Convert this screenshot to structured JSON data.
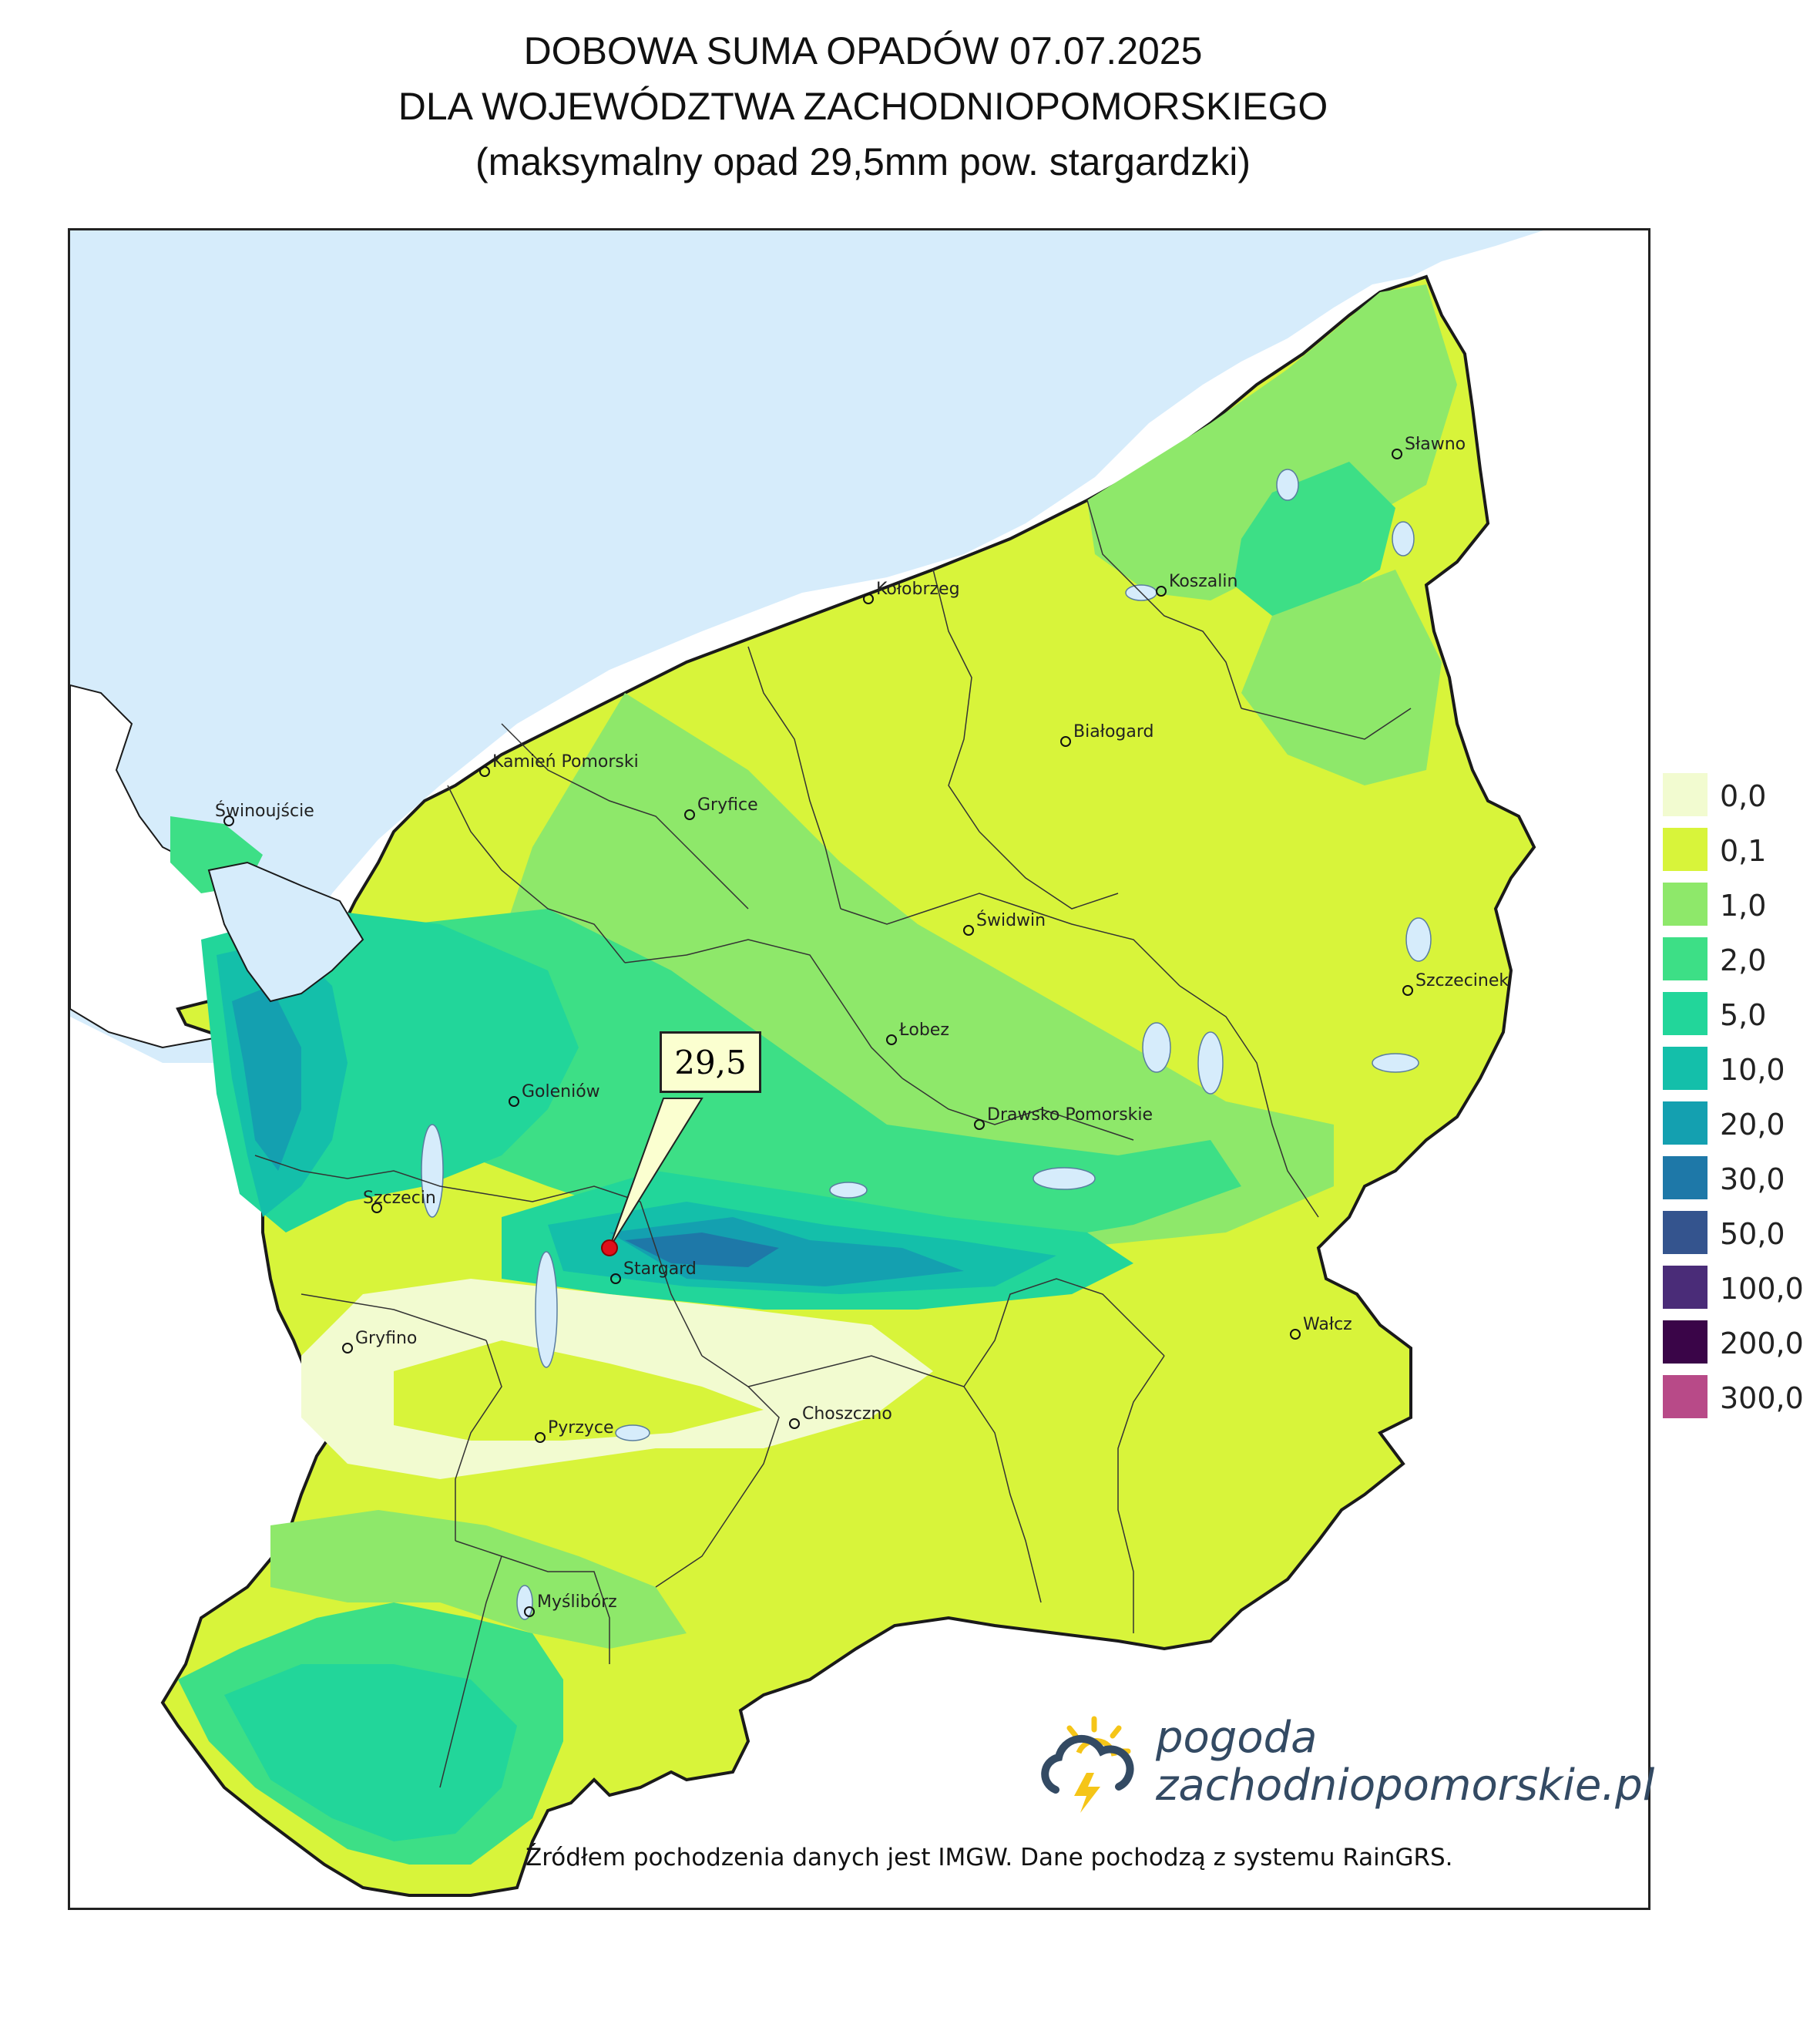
{
  "title": {
    "line1": "DOBOWA SUMA OPADÓW 07.07.2025",
    "line2": "DLA WOJEWÓDZTWA ZACHODNIOPOMORSKIEGO",
    "line3": "(maksymalny opad 29,5mm pow. stargardzki)"
  },
  "map": {
    "max_value_label": "29,5",
    "colors": {
      "sea": "#d6ecfb",
      "outside_land": "#ffffff",
      "border": "#1a1a1a",
      "max_marker": "#e0101a"
    },
    "cities": [
      {
        "name": "Sławno"
      },
      {
        "name": "Koszalin"
      },
      {
        "name": "Kołobrzeg"
      },
      {
        "name": "Białogard"
      },
      {
        "name": "Kamień Pomorski"
      },
      {
        "name": "Gryfice"
      },
      {
        "name": "Świnoujście"
      },
      {
        "name": "Świdwin"
      },
      {
        "name": "Szczecinek"
      },
      {
        "name": "Łobez"
      },
      {
        "name": "Goleniów"
      },
      {
        "name": "Drawsko Pomorskie"
      },
      {
        "name": "Szczecin"
      },
      {
        "name": "Stargard"
      },
      {
        "name": "Wałcz"
      },
      {
        "name": "Gryfino"
      },
      {
        "name": "Choszczno"
      },
      {
        "name": "Pyrzyce"
      },
      {
        "name": "Myślibórz"
      }
    ]
  },
  "legend": [
    {
      "label": "0,0",
      "color": "#f2fbd0"
    },
    {
      "label": "0,1",
      "color": "#d8f43a"
    },
    {
      "label": "1,0",
      "color": "#8ee86a"
    },
    {
      "label": "2,0",
      "color": "#3ddf86"
    },
    {
      "label": "5,0",
      "color": "#22d69a"
    },
    {
      "label": "10,0",
      "color": "#14bfaa"
    },
    {
      "label": "20,0",
      "color": "#14a0b0"
    },
    {
      "label": "30,0",
      "color": "#1e78a8"
    },
    {
      "label": "50,0",
      "color": "#34548e"
    },
    {
      "label": "100,0",
      "color": "#4a2c78"
    },
    {
      "label": "200,0",
      "color": "#3a0548"
    },
    {
      "label": "300,0",
      "color": "#b84a88"
    }
  ],
  "brand": {
    "line1": "pogoda",
    "line2": "zachodniopomorskie.pl",
    "icon": "sun-cloud-lightning-icon"
  },
  "source_note": "Źródłem pochodzenia danych jest IMGW. Dane pochodzą z systemu RainGRS."
}
